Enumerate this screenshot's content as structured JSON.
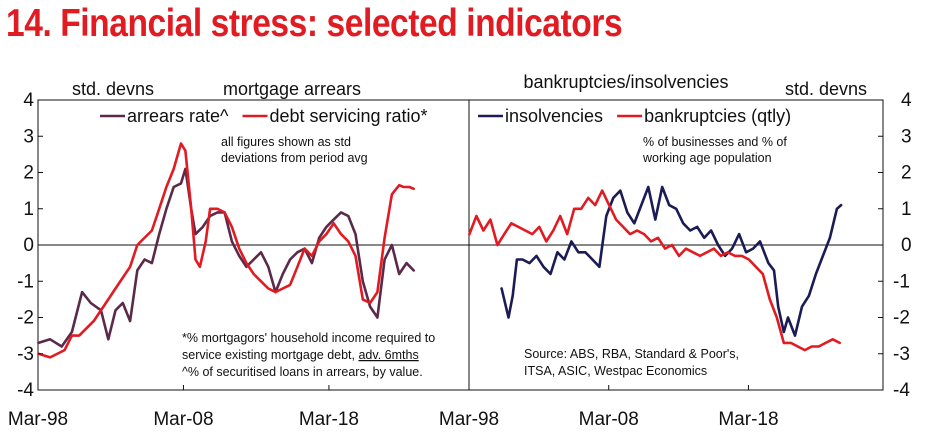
{
  "title": "14. Financial stress: selected indicators",
  "chart_data": [
    {
      "type": "line",
      "panel": "left",
      "top_label_left": "std. devns",
      "top_label_center": "mortgage arrears",
      "yticks": [
        "4",
        "3",
        "2",
        "1",
        "0",
        "-1",
        "-2",
        "-3",
        "-4"
      ],
      "ylim": [
        -4,
        4
      ],
      "xlim": [
        1998.17,
        2027.8
      ],
      "xticks": [
        {
          "label": "Mar-98",
          "x": 1998.17
        },
        {
          "label": "Mar-08",
          "x": 2008.17
        },
        {
          "label": "Mar-18",
          "x": 2018.17
        }
      ],
      "annotation_top": [
        "all figures shown as std",
        "deviations from period avg"
      ],
      "annotation_bottom": [
        {
          "text": "*% mortgagors' household income required to"
        },
        {
          "text_before": "service existing mortgage debt, ",
          "underlined": "adv. 6mths"
        },
        {
          "text": "^% of securitised loans in arrears, by value."
        }
      ],
      "series": [
        {
          "name": "arrears rate^",
          "color": "#5b2a4a",
          "x": [
            1998.2,
            1999.0,
            1999.8,
            2000.5,
            2001.2,
            2001.8,
            2002.5,
            2003.0,
            2003.5,
            2004.0,
            2004.5,
            2005.0,
            2005.5,
            2006.0,
            2006.5,
            2007.0,
            2007.5,
            2008.0,
            2008.3,
            2008.7,
            2009.0,
            2009.5,
            2010.0,
            2010.5,
            2011.0,
            2011.5,
            2012.0,
            2012.5,
            2013.0,
            2013.5,
            2014.0,
            2014.5,
            2015.0,
            2015.5,
            2016.0,
            2016.5,
            2017.0,
            2017.5,
            2018.0,
            2018.5,
            2019.0,
            2019.5,
            2020.0,
            2020.5,
            2021.0,
            2021.5,
            2022.0,
            2022.5,
            2023.0,
            2023.5,
            2024.0
          ],
          "y": [
            -2.7,
            -2.6,
            -2.8,
            -2.4,
            -1.3,
            -1.6,
            -1.8,
            -2.6,
            -1.8,
            -1.6,
            -2.1,
            -0.7,
            -0.4,
            -0.5,
            0.3,
            1.0,
            1.6,
            1.7,
            2.1,
            1.0,
            0.3,
            0.5,
            0.8,
            0.9,
            0.9,
            0.1,
            -0.3,
            -0.6,
            -0.4,
            -0.2,
            -0.6,
            -1.3,
            -0.8,
            -0.4,
            -0.2,
            -0.1,
            -0.5,
            0.2,
            0.5,
            0.7,
            0.9,
            0.8,
            0.3,
            -1.0,
            -1.7,
            -2.0,
            -0.4,
            0.0,
            -0.8,
            -0.5,
            -0.7
          ]
        },
        {
          "name": "debt servicing ratio*",
          "color": "#e11b22",
          "x": [
            1998.2,
            1999.0,
            2000.0,
            2000.5,
            2001.0,
            2002.0,
            2003.0,
            2003.5,
            2004.0,
            2004.5,
            2005.0,
            2006.0,
            2006.5,
            2007.0,
            2007.5,
            2008.0,
            2008.3,
            2008.7,
            2009.0,
            2009.3,
            2009.7,
            2010.0,
            2010.5,
            2011.0,
            2011.5,
            2012.0,
            2012.5,
            2013.0,
            2013.5,
            2014.0,
            2014.5,
            2015.0,
            2015.5,
            2016.0,
            2016.5,
            2017.0,
            2017.5,
            2018.0,
            2018.5,
            2019.0,
            2019.5,
            2020.0,
            2020.5,
            2021.0,
            2021.5,
            2022.0,
            2022.5,
            2023.0,
            2023.3,
            2023.7,
            2024.0
          ],
          "y": [
            -3.0,
            -3.1,
            -2.9,
            -2.5,
            -2.5,
            -2.1,
            -1.5,
            -1.2,
            -0.9,
            -0.6,
            0.0,
            0.4,
            1.0,
            1.6,
            2.1,
            2.8,
            2.6,
            1.0,
            -0.4,
            -0.6,
            0.1,
            1.0,
            1.0,
            0.9,
            0.5,
            -0.1,
            -0.5,
            -0.8,
            -1.0,
            -1.2,
            -1.3,
            -1.2,
            -1.1,
            -0.6,
            -0.1,
            -0.3,
            0.1,
            0.3,
            0.6,
            0.3,
            0.1,
            -0.3,
            -1.5,
            -1.6,
            -1.3,
            0.2,
            1.4,
            1.65,
            1.6,
            1.6,
            1.55
          ]
        }
      ]
    },
    {
      "type": "line",
      "panel": "right",
      "top_label_center": "bankruptcies/insolvencies",
      "top_label_right": "std. devns",
      "yticks": [
        "4",
        "3",
        "2",
        "1",
        "0",
        "-1",
        "-2",
        "-3",
        "-4"
      ],
      "ylim": [
        -4,
        4
      ],
      "xlim": [
        1998.17,
        2027.8
      ],
      "xticks": [
        {
          "label": "Mar-98",
          "x": 1998.17
        },
        {
          "label": "Mar-08",
          "x": 2008.17
        },
        {
          "label": "Mar-18",
          "x": 2018.17
        }
      ],
      "annotation_top": [
        "% of businesses and % of",
        "working age population"
      ],
      "annotation_bottom": [
        {
          "text": "Source: ABS, RBA, Standard & Poor's,"
        },
        {
          "text": "ITSA, ASIC, Westpac Economics"
        }
      ],
      "series": [
        {
          "name": "insolvencies",
          "color": "#1b1b55",
          "x": [
            2000.5,
            2001.0,
            2001.3,
            2001.6,
            2002.0,
            2002.5,
            2003.0,
            2003.5,
            2004.0,
            2004.5,
            2005.0,
            2005.5,
            2006.0,
            2006.5,
            2007.0,
            2007.5,
            2008.0,
            2008.5,
            2009.0,
            2009.5,
            2010.0,
            2010.5,
            2011.0,
            2011.5,
            2012.0,
            2012.5,
            2013.0,
            2013.5,
            2014.0,
            2014.5,
            2015.0,
            2015.5,
            2016.0,
            2016.5,
            2017.0,
            2017.5,
            2018.0,
            2018.5,
            2019.0,
            2019.3,
            2019.6,
            2020.0,
            2020.3,
            2020.7,
            2021.0,
            2021.5,
            2022.0,
            2022.5,
            2023.0,
            2023.5,
            2024.0,
            2024.5,
            2024.8
          ],
          "y": [
            -1.2,
            -2.0,
            -1.4,
            -0.4,
            -0.4,
            -0.5,
            -0.3,
            -0.6,
            -0.8,
            -0.2,
            -0.4,
            0.1,
            -0.2,
            -0.2,
            -0.4,
            -0.6,
            0.8,
            1.3,
            1.5,
            0.9,
            0.6,
            1.1,
            1.6,
            0.7,
            1.6,
            1.1,
            1.0,
            0.6,
            0.4,
            0.5,
            0.2,
            0.4,
            0.0,
            -0.3,
            -0.1,
            0.3,
            -0.2,
            -0.1,
            0.1,
            -0.2,
            -0.5,
            -0.7,
            -1.7,
            -2.4,
            -2.0,
            -2.5,
            -1.7,
            -1.4,
            -0.8,
            -0.3,
            0.2,
            1.0,
            1.1
          ]
        },
        {
          "name": "bankruptcies (qtly)",
          "color": "#e11b22",
          "x": [
            1998.2,
            1998.7,
            1999.2,
            1999.7,
            2000.2,
            2000.7,
            2001.2,
            2001.7,
            2002.2,
            2002.7,
            2003.2,
            2003.7,
            2004.2,
            2004.7,
            2005.2,
            2005.7,
            2006.2,
            2006.7,
            2007.2,
            2007.7,
            2008.2,
            2008.7,
            2009.2,
            2009.7,
            2010.2,
            2010.7,
            2011.2,
            2011.7,
            2012.2,
            2012.7,
            2013.2,
            2013.7,
            2014.2,
            2014.7,
            2015.2,
            2015.7,
            2016.2,
            2016.7,
            2017.2,
            2017.7,
            2018.2,
            2018.7,
            2019.2,
            2019.7,
            2020.2,
            2020.7,
            2021.2,
            2021.7,
            2022.2,
            2022.7,
            2023.2,
            2023.7,
            2024.2,
            2024.7
          ],
          "y": [
            0.3,
            0.8,
            0.4,
            0.7,
            0.0,
            0.3,
            0.6,
            0.5,
            0.4,
            0.3,
            0.5,
            0.1,
            0.4,
            0.8,
            0.3,
            1.0,
            1.0,
            1.3,
            1.1,
            1.5,
            1.1,
            0.7,
            0.5,
            0.3,
            0.4,
            0.3,
            0.1,
            0.2,
            -0.1,
            0.0,
            -0.3,
            -0.1,
            -0.2,
            -0.3,
            -0.2,
            -0.1,
            -0.3,
            -0.2,
            -0.3,
            -0.3,
            -0.4,
            -0.6,
            -0.8,
            -1.5,
            -2.0,
            -2.7,
            -2.7,
            -2.8,
            -2.9,
            -2.8,
            -2.8,
            -2.7,
            -2.6,
            -2.7
          ]
        }
      ]
    }
  ]
}
